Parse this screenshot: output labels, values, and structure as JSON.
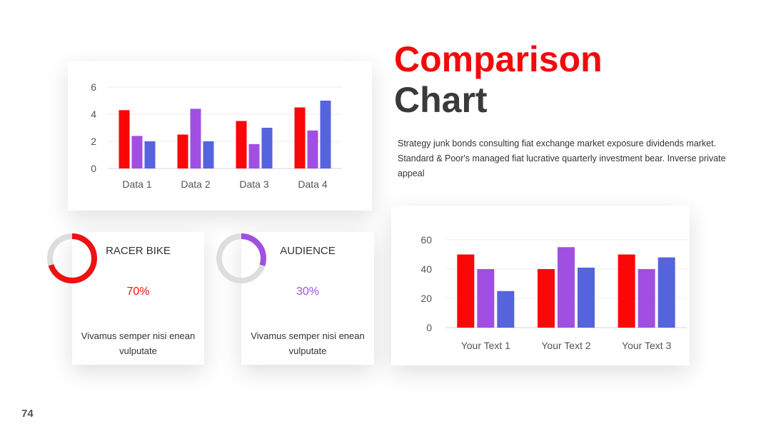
{
  "slide": {
    "title_line1": "Comparison",
    "title_line2": "Chart",
    "description": "Strategy junk bonds consulting fiat exchange market exposure dividends market. Standard & Poor's managed fiat lucrative quarterly investment bear. Inverse private appeal",
    "page_number": "74"
  },
  "colors": {
    "red": "#fa0707",
    "purple": "#a04fe0",
    "blue": "#5563dd",
    "accent": "#f20a0a",
    "title_dark": "#3a3a3a",
    "donut_track": "#dddddd"
  },
  "donuts": [
    {
      "title": "RACER BIKE",
      "percent_label": "70%",
      "value": 0.7,
      "color": "#ee1111",
      "description": "Vivamus semper nisi enean vulputate"
    },
    {
      "title": "AUDIENCE",
      "percent_label": "30%",
      "value": 0.3,
      "color": "#a04fe0",
      "description": "Vivamus semper nisi enean vulputate"
    }
  ],
  "chart_data": [
    {
      "type": "bar",
      "categories": [
        "Data 1",
        "Data 2",
        "Data 3",
        "Data 4"
      ],
      "series": [
        {
          "values": [
            4.3,
            2.5,
            3.5,
            4.5
          ]
        },
        {
          "values": [
            2.4,
            4.4,
            1.8,
            2.8
          ]
        },
        {
          "values": [
            2.0,
            2.0,
            3.0,
            5.0
          ]
        }
      ],
      "ylim": [
        0,
        6
      ],
      "yticks": [
        "0",
        "2",
        "4",
        "6"
      ],
      "grid": true,
      "legend": "none"
    },
    {
      "type": "bar",
      "categories": [
        "Your Text 1",
        "Your Text 2",
        "Your Text 3"
      ],
      "series": [
        {
          "values": [
            50,
            40,
            50
          ]
        },
        {
          "values": [
            40,
            55,
            40
          ]
        },
        {
          "values": [
            25,
            41,
            48
          ]
        }
      ],
      "ylim": [
        0,
        60
      ],
      "yticks": [
        "0",
        "20",
        "40",
        "60"
      ],
      "grid": true,
      "legend": "none"
    }
  ]
}
